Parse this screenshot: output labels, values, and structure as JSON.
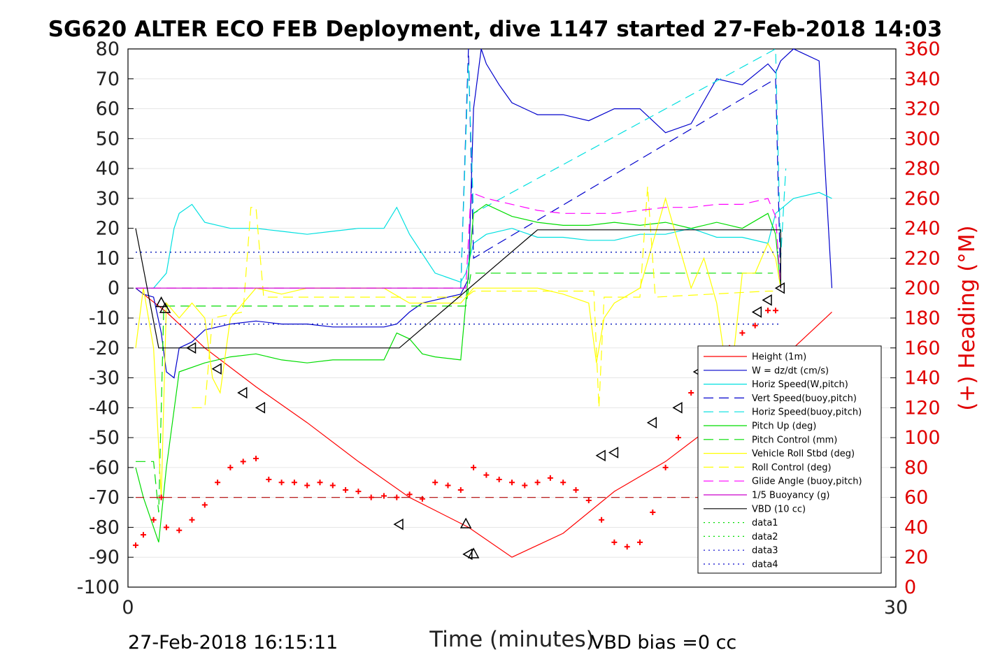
{
  "chart_data": {
    "type": "line",
    "title": "SG620 ALTER ECO FEB Deployment, dive 1147 started 27-Feb-2018 14:03",
    "xlabel": "Time (minutes)",
    "ylabel_right": "(+) Heading (°M)",
    "xlim": [
      0,
      30
    ],
    "ylim": [
      -100,
      80
    ],
    "ylim_right": [
      0,
      360
    ],
    "x_ticks": [
      "0",
      "30"
    ],
    "y_ticks": [
      "80",
      "70",
      "60",
      "50",
      "40",
      "30",
      "20",
      "10",
      "0",
      "-10",
      "-20",
      "-30",
      "-40",
      "-50",
      "-60",
      "-70",
      "-80",
      "-90",
      "-100"
    ],
    "y_right_ticks": [
      "360",
      "340",
      "320",
      "300",
      "280",
      "260",
      "240",
      "220",
      "200",
      "180",
      "160",
      "140",
      "120",
      "100",
      "80",
      "60",
      "40",
      "20",
      "0"
    ],
    "grid": true,
    "legend_position": "bottom-right",
    "footer_left": "27-Feb-2018 16:15:11",
    "footer_right": "VBD bias =0 cc",
    "colors": {
      "height": "#ff0000",
      "w": "#0000cc",
      "hspeed": "#00e0e0",
      "pitch": "#00dd00",
      "roll": "#ffff00",
      "glide": "#ff00ff",
      "vbd": "#000000",
      "heading": "#ff0000"
    },
    "legend": [
      {
        "name": "Height (1m)",
        "color": "#ff0000",
        "dash": "solid"
      },
      {
        "name": "W = dz/dt (cm/s)",
        "color": "#0000cc",
        "dash": "solid"
      },
      {
        "name": "Horiz Speed(W,pitch)",
        "color": "#00e0e0",
        "dash": "solid"
      },
      {
        "name": "Vert Speed(buoy,pitch)",
        "color": "#0000cc",
        "dash": "dashed"
      },
      {
        "name": "Horiz Speed(buoy,pitch)",
        "color": "#00e0e0",
        "dash": "dashed"
      },
      {
        "name": "Pitch Up (deg)",
        "color": "#00dd00",
        "dash": "solid"
      },
      {
        "name": "Pitch Control (mm)",
        "color": "#00dd00",
        "dash": "dashed"
      },
      {
        "name": "Vehicle Roll Stbd (deg)",
        "color": "#ffff00",
        "dash": "solid"
      },
      {
        "name": "Roll Control (deg)",
        "color": "#ffff00",
        "dash": "dashed"
      },
      {
        "name": "Glide Angle (buoy,pitch)",
        "color": "#ff00ff",
        "dash": "dashed"
      },
      {
        "name": "1/5 Buoyancy (g)",
        "color": "#cc00cc",
        "dash": "solid"
      },
      {
        "name": "VBD (10 cc)",
        "color": "#000000",
        "dash": "solid"
      },
      {
        "name": "data1",
        "color": "#00dd00",
        "dash": "dotted"
      },
      {
        "name": "data2",
        "color": "#00dd00",
        "dash": "dotted"
      },
      {
        "name": "data3",
        "color": "#0000cc",
        "dash": "dotted"
      },
      {
        "name": "data4",
        "color": "#0000cc",
        "dash": "dotted"
      }
    ],
    "series": [
      {
        "name": "Height (1m)",
        "axis": "left",
        "x": [
          0.3,
          1.5,
          3,
          5,
          7,
          9,
          11,
          13.3,
          15,
          17,
          19,
          21,
          23,
          25,
          27.5
        ],
        "y": [
          0,
          -8,
          -20,
          -33,
          -45,
          -58,
          -70,
          -80,
          -90,
          -82,
          -68,
          -58,
          -45,
          -28,
          -8
        ]
      },
      {
        "name": "W = dz/dt (cm/s)",
        "axis": "left",
        "x": [
          0.3,
          0.6,
          1,
          1.3,
          1.5,
          1.8,
          2,
          2.5,
          3,
          4,
          5,
          6,
          7,
          8,
          9,
          10,
          10.5,
          11,
          11.5,
          13,
          13.3,
          13.5,
          13.8,
          14,
          14.5,
          15,
          16,
          17,
          18,
          19,
          20,
          21,
          22,
          23,
          24,
          25,
          25.3,
          25.5,
          26,
          27,
          27.3,
          27.5
        ],
        "y": [
          0,
          -2,
          -3,
          -15,
          -28,
          -30,
          -20,
          -18,
          -14,
          -12,
          -11,
          -12,
          -12,
          -13,
          -13,
          -13,
          -12,
          -8,
          -5,
          -2,
          3,
          60,
          80,
          75,
          68,
          62,
          58,
          58,
          56,
          60,
          60,
          52,
          55,
          70,
          68,
          75,
          72,
          76,
          80,
          76,
          30,
          0
        ]
      },
      {
        "name": "Horiz Speed(W,pitch)",
        "axis": "left",
        "x": [
          0.3,
          1,
          1.5,
          1.8,
          2,
          2.5,
          3,
          4,
          5,
          6,
          7,
          8,
          9,
          10,
          10.5,
          11,
          12,
          13,
          13.2,
          13.5,
          14,
          15,
          16,
          17,
          18,
          19,
          20,
          21,
          22,
          23,
          24,
          25,
          25.3,
          26,
          27,
          27.5
        ],
        "y": [
          0,
          0,
          5,
          20,
          25,
          28,
          22,
          20,
          20,
          19,
          18,
          19,
          20,
          20,
          27,
          18,
          5,
          2,
          5,
          15,
          18,
          20,
          17,
          17,
          16,
          16,
          18,
          18,
          20,
          17,
          17,
          15,
          25,
          30,
          32,
          30
        ]
      },
      {
        "name": "Vert Speed(buoy,pitch)",
        "axis": "left",
        "x": [
          13,
          13.3,
          13.5,
          25.3,
          25.5
        ],
        "y": [
          0,
          80,
          10,
          70,
          0
        ]
      },
      {
        "name": "Horiz Speed(buoy,pitch)",
        "axis": "left",
        "x": [
          13,
          13.3,
          13.5,
          25.3,
          25.5,
          25.7
        ],
        "y": [
          0,
          75,
          25,
          80,
          10,
          40
        ]
      },
      {
        "name": "Pitch Up (deg)",
        "axis": "left",
        "x": [
          0.3,
          0.6,
          1,
          1.2,
          1.5,
          2,
          3,
          4,
          5,
          6,
          7,
          8,
          9,
          10,
          10.5,
          11,
          11.5,
          12,
          13,
          13.3,
          13.5,
          14,
          15,
          16,
          17,
          18,
          19,
          20,
          21,
          22,
          23,
          24,
          25,
          25.3,
          25.5
        ],
        "y": [
          -60,
          -70,
          -80,
          -85,
          -60,
          -28,
          -25,
          -23,
          -22,
          -24,
          -25,
          -24,
          -24,
          -24,
          -15,
          -17,
          -22,
          -23,
          -24,
          5,
          25,
          28,
          24,
          22,
          21,
          21,
          22,
          21,
          22,
          20,
          22,
          20,
          25,
          18,
          0
        ]
      },
      {
        "name": "Pitch Control (mm)",
        "axis": "left",
        "x": [
          0.3,
          1,
          1.2,
          1.4,
          13.2,
          13.4,
          25.2
        ],
        "y": [
          -58,
          -58,
          -75,
          -6,
          -6,
          5,
          5
        ]
      },
      {
        "name": "Vehicle Roll Stbd (deg)",
        "axis": "left",
        "x": [
          0.3,
          0.6,
          1,
          1.3,
          1.5,
          2,
          2.5,
          3,
          3.3,
          3.6,
          4,
          5,
          6,
          7,
          8,
          9,
          10,
          11,
          12,
          13,
          13.5,
          14,
          15,
          16,
          17,
          18,
          18.3,
          18.6,
          19,
          20,
          21,
          22,
          22.5,
          23,
          23.5,
          24,
          24.5,
          25,
          25.3,
          25.5
        ],
        "y": [
          -20,
          0,
          -20,
          -70,
          -5,
          -10,
          -5,
          -10,
          -30,
          -35,
          -10,
          0,
          -2,
          0,
          0,
          0,
          0,
          -5,
          -5,
          -5,
          0,
          0,
          0,
          0,
          -2,
          -5,
          -25,
          -10,
          -5,
          0,
          30,
          0,
          10,
          -5,
          -35,
          5,
          5,
          15,
          10,
          0
        ]
      },
      {
        "name": "Roll Control (deg)",
        "axis": "left",
        "x": [
          2.5,
          3,
          3.3,
          4.5,
          4.8,
          5,
          5.3,
          13.2,
          13.5,
          18.2,
          18.4,
          18.6,
          20,
          20.3,
          20.6,
          25,
          25.2
        ],
        "y": [
          -40,
          -40,
          -10,
          -8,
          27,
          27,
          -3,
          -3,
          -1,
          -1,
          -40,
          -3,
          -3,
          34,
          -3,
          -1,
          -1
        ]
      },
      {
        "name": "Glide Angle (buoy,pitch)",
        "axis": "left",
        "x": [
          0.3,
          13.2,
          13.4,
          14,
          15,
          16,
          17,
          18,
          19,
          20,
          21,
          22,
          23,
          24,
          25,
          25.3,
          25.5
        ],
        "y": [
          0,
          0,
          32,
          30,
          28,
          26,
          25,
          25,
          25,
          26,
          27,
          27,
          28,
          28,
          30,
          24,
          0
        ]
      },
      {
        "name": "1/5 Buoyancy (g)",
        "axis": "left",
        "x": [
          0.3,
          13.2
        ],
        "y": [
          0,
          0
        ]
      },
      {
        "name": "VBD (10 cc)",
        "axis": "left",
        "x": [
          0.3,
          1.2,
          3,
          10.6,
          16,
          25.5,
          25.5
        ],
        "y": [
          20,
          -20,
          -20,
          -20,
          19.5,
          19.5,
          0
        ]
      },
      {
        "name": "data1",
        "axis": "left",
        "x": [
          0.3,
          25.5
        ],
        "y": [
          12,
          12
        ]
      },
      {
        "name": "data2",
        "axis": "left",
        "x": [
          0.3,
          25.5
        ],
        "y": [
          -12,
          -12
        ]
      },
      {
        "name": "data3",
        "axis": "left",
        "x": [
          0.3,
          25.5
        ],
        "y": [
          12,
          12
        ]
      },
      {
        "name": "data4",
        "axis": "left",
        "x": [
          0.3,
          25.5
        ],
        "y": [
          -12,
          -12
        ]
      },
      {
        "name": "Heading",
        "axis": "right",
        "style": "plus",
        "x": [
          0.3,
          0.6,
          1,
          1.3,
          1.5,
          2,
          2.5,
          3,
          3.5,
          4,
          4.5,
          5,
          5.5,
          6,
          6.5,
          7,
          7.5,
          8,
          8.5,
          9,
          9.5,
          10,
          10.5,
          11,
          11.5,
          12,
          12.5,
          13,
          13.5,
          14,
          14.5,
          15,
          15.5,
          16,
          16.5,
          17,
          17.5,
          18,
          18.5,
          19,
          19.5,
          20,
          20.5,
          21,
          21.5,
          22,
          22.5,
          23,
          23.5,
          24,
          24.5,
          25,
          25.3
        ],
        "y": [
          28,
          35,
          45,
          60,
          40,
          38,
          45,
          55,
          70,
          80,
          84,
          86,
          72,
          70,
          70,
          68,
          70,
          68,
          65,
          64,
          60,
          61,
          60,
          62,
          59,
          70,
          68,
          65,
          80,
          75,
          72,
          70,
          68,
          70,
          73,
          70,
          65,
          58,
          45,
          30,
          27,
          30,
          50,
          80,
          100,
          130,
          145,
          150,
          160,
          170,
          175,
          185,
          185
        ]
      },
      {
        "name": "Heading mean",
        "axis": "right",
        "style": "dashed",
        "x": [
          0.3,
          25.5
        ],
        "y": [
          60,
          60
        ]
      }
    ],
    "markers": [
      {
        "shape": "up",
        "x": [
          1.3,
          1.45,
          13.2,
          13.5
        ],
        "y": [
          -5,
          -7,
          -79,
          -89
        ]
      },
      {
        "shape": "left",
        "x": [
          2.5,
          3.5,
          4.5,
          5.2,
          10.6,
          13.3,
          18.5,
          19,
          20.5,
          21.5,
          22.3,
          24.6,
          25,
          25.5
        ],
        "y": [
          -20,
          -27,
          -35,
          -40,
          -79,
          -89,
          -56,
          -55,
          -45,
          -40,
          -28,
          -8,
          -4,
          0
        ]
      }
    ]
  }
}
